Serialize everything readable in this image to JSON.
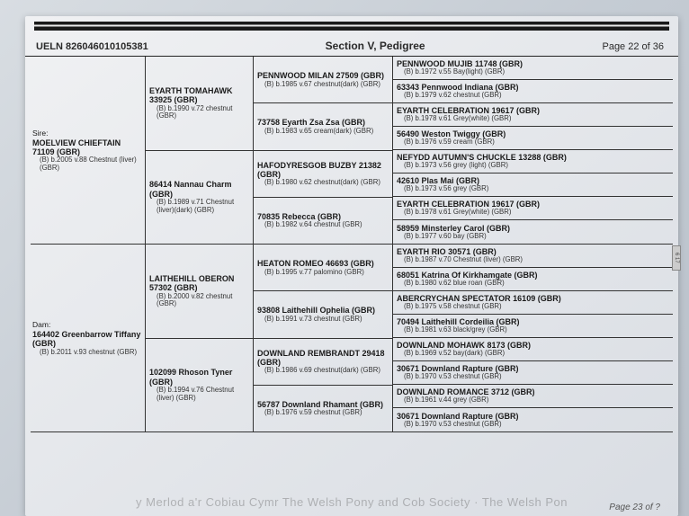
{
  "header": {
    "ueln": "UELN 826046010105381",
    "section": "Section V, Pedigree",
    "page": "Page 22 of 36"
  },
  "footer": {
    "pageNext": "Page 23 of ?",
    "watermark": "y Merlod a'r Cobiau Cymr   The Welsh Pony and Cob Society · The Welsh Pon"
  },
  "sire": {
    "label": "Sire:",
    "name": "MOELVIEW CHIEFTAIN 71109 (GBR)",
    "detail": "(B) b.2005 v.88 Chestnut (liver) (GBR)",
    "g2": [
      {
        "name": "EYARTH TOMAHAWK 33925 (GBR)",
        "detail": "(B) b.1990 v.72 chestnut (GBR)",
        "g3": [
          {
            "name": "PENNWOOD MILAN 27509 (GBR)",
            "detail": "(B) b.1985 v.67 chestnut(dark) (GBR)",
            "g4": [
              {
                "name": "PENNWOOD MUJIB 11748 (GBR)",
                "detail": "(B) b.1972 v.55 Bay(light) (GBR)"
              },
              {
                "name": "63343 Pennwood Indiana (GBR)",
                "detail": "(B) b.1979 v.62 chestnut (GBR)"
              }
            ]
          },
          {
            "name": "73758 Eyarth Zsa Zsa (GBR)",
            "detail": "(B) b.1983 v.65 cream(dark) (GBR)",
            "g4": [
              {
                "name": "EYARTH CELEBRATION 19617 (GBR)",
                "detail": "(B) b.1978 v.61 Grey(white) (GBR)"
              },
              {
                "name": "56490 Weston Twiggy (GBR)",
                "detail": "(B) b.1976 v.59 cream (GBR)"
              }
            ]
          }
        ]
      },
      {
        "name": "86414 Nannau Charm (GBR)",
        "detail": "(B) b.1989 v.71 Chestnut (liver)(dark) (GBR)",
        "g3": [
          {
            "name": "HAFODYRESGOB BUZBY 21382 (GBR)",
            "detail": "(B) b.1980 v.62 chestnut(dark) (GBR)",
            "g4": [
              {
                "name": "NEFYDD AUTUMN'S CHUCKLE 13288 (GBR)",
                "detail": "(B) b.1973 v.56 grey (light) (GBR)"
              },
              {
                "name": "42610 Plas Mai (GBR)",
                "detail": "(B) b.1973 v.56 grey (GBR)"
              }
            ]
          },
          {
            "name": "70835 Rebecca (GBR)",
            "detail": "(B) b.1982 v.64 chestnut (GBR)",
            "g4": [
              {
                "name": "EYARTH CELEBRATION 19617 (GBR)",
                "detail": "(B) b.1978 v.61 Grey(white) (GBR)"
              },
              {
                "name": "58959 Minsterley Carol (GBR)",
                "detail": "(B) b.1977 v.60 bay (GBR)"
              }
            ]
          }
        ]
      }
    ]
  },
  "dam": {
    "label": "Dam:",
    "name": "164402 Greenbarrow Tiffany (GBR)",
    "detail": "(B) b.2011 v.93 chestnut (GBR)",
    "g2": [
      {
        "name": "LAITHEHILL OBERON 57302 (GBR)",
        "detail": "(B) b.2000 v.82 chestnut (GBR)",
        "g3": [
          {
            "name": "HEATON ROMEO 46693 (GBR)",
            "detail": "(B) b.1995 v.77 palomino (GBR)",
            "g4": [
              {
                "name": "EYARTH RIO 30571 (GBR)",
                "detail": "(B) b.1987 v.70 Chestnut (liver) (GBR)"
              },
              {
                "name": "68051 Katrina Of Kirkhamgate (GBR)",
                "detail": "(B) b.1980 v.62 blue roan (GBR)"
              }
            ]
          },
          {
            "name": "93808 Laithehill Ophelia (GBR)",
            "detail": "(B) b.1991 v.73 chestnut (GBR)",
            "g4": [
              {
                "name": "ABERCRYCHAN SPECTATOR 16109 (GBR)",
                "detail": "(B) b.1975 v.58 chestnut (GBR)"
              },
              {
                "name": "70494 Laithehill Cordeilia (GBR)",
                "detail": "(B) b.1981 v.63 black/grey (GBR)"
              }
            ]
          }
        ]
      },
      {
        "name": "102099 Rhoson Tyner (GBR)",
        "detail": "(B) b.1994 v.76 Chestnut (liver) (GBR)",
        "g3": [
          {
            "name": "DOWNLAND REMBRANDT 29418 (GBR)",
            "detail": "(B) b.1986 v.69 chestnut(dark) (GBR)",
            "g4": [
              {
                "name": "DOWNLAND MOHAWK 8173 (GBR)",
                "detail": "(B) b.1969 v.52 bay(dark) (GBR)"
              },
              {
                "name": "30671 Downland Rapture (GBR)",
                "detail": "(B) b.1970 v.53 chestnut (GBR)"
              }
            ]
          },
          {
            "name": "56787 Downland Rhamant (GBR)",
            "detail": "(B) b.1976 v.59 chestnut (GBR)",
            "g4": [
              {
                "name": "DOWNLAND ROMANCE 3712 (GBR)",
                "detail": "(B) b.1961 v.44 grey (GBR)"
              },
              {
                "name": "30671 Downland Rapture (GBR)",
                "detail": "(B) b.1970 v.53 chestnut (GBR)"
              }
            ]
          }
        ]
      }
    ]
  },
  "tab": "6 17"
}
